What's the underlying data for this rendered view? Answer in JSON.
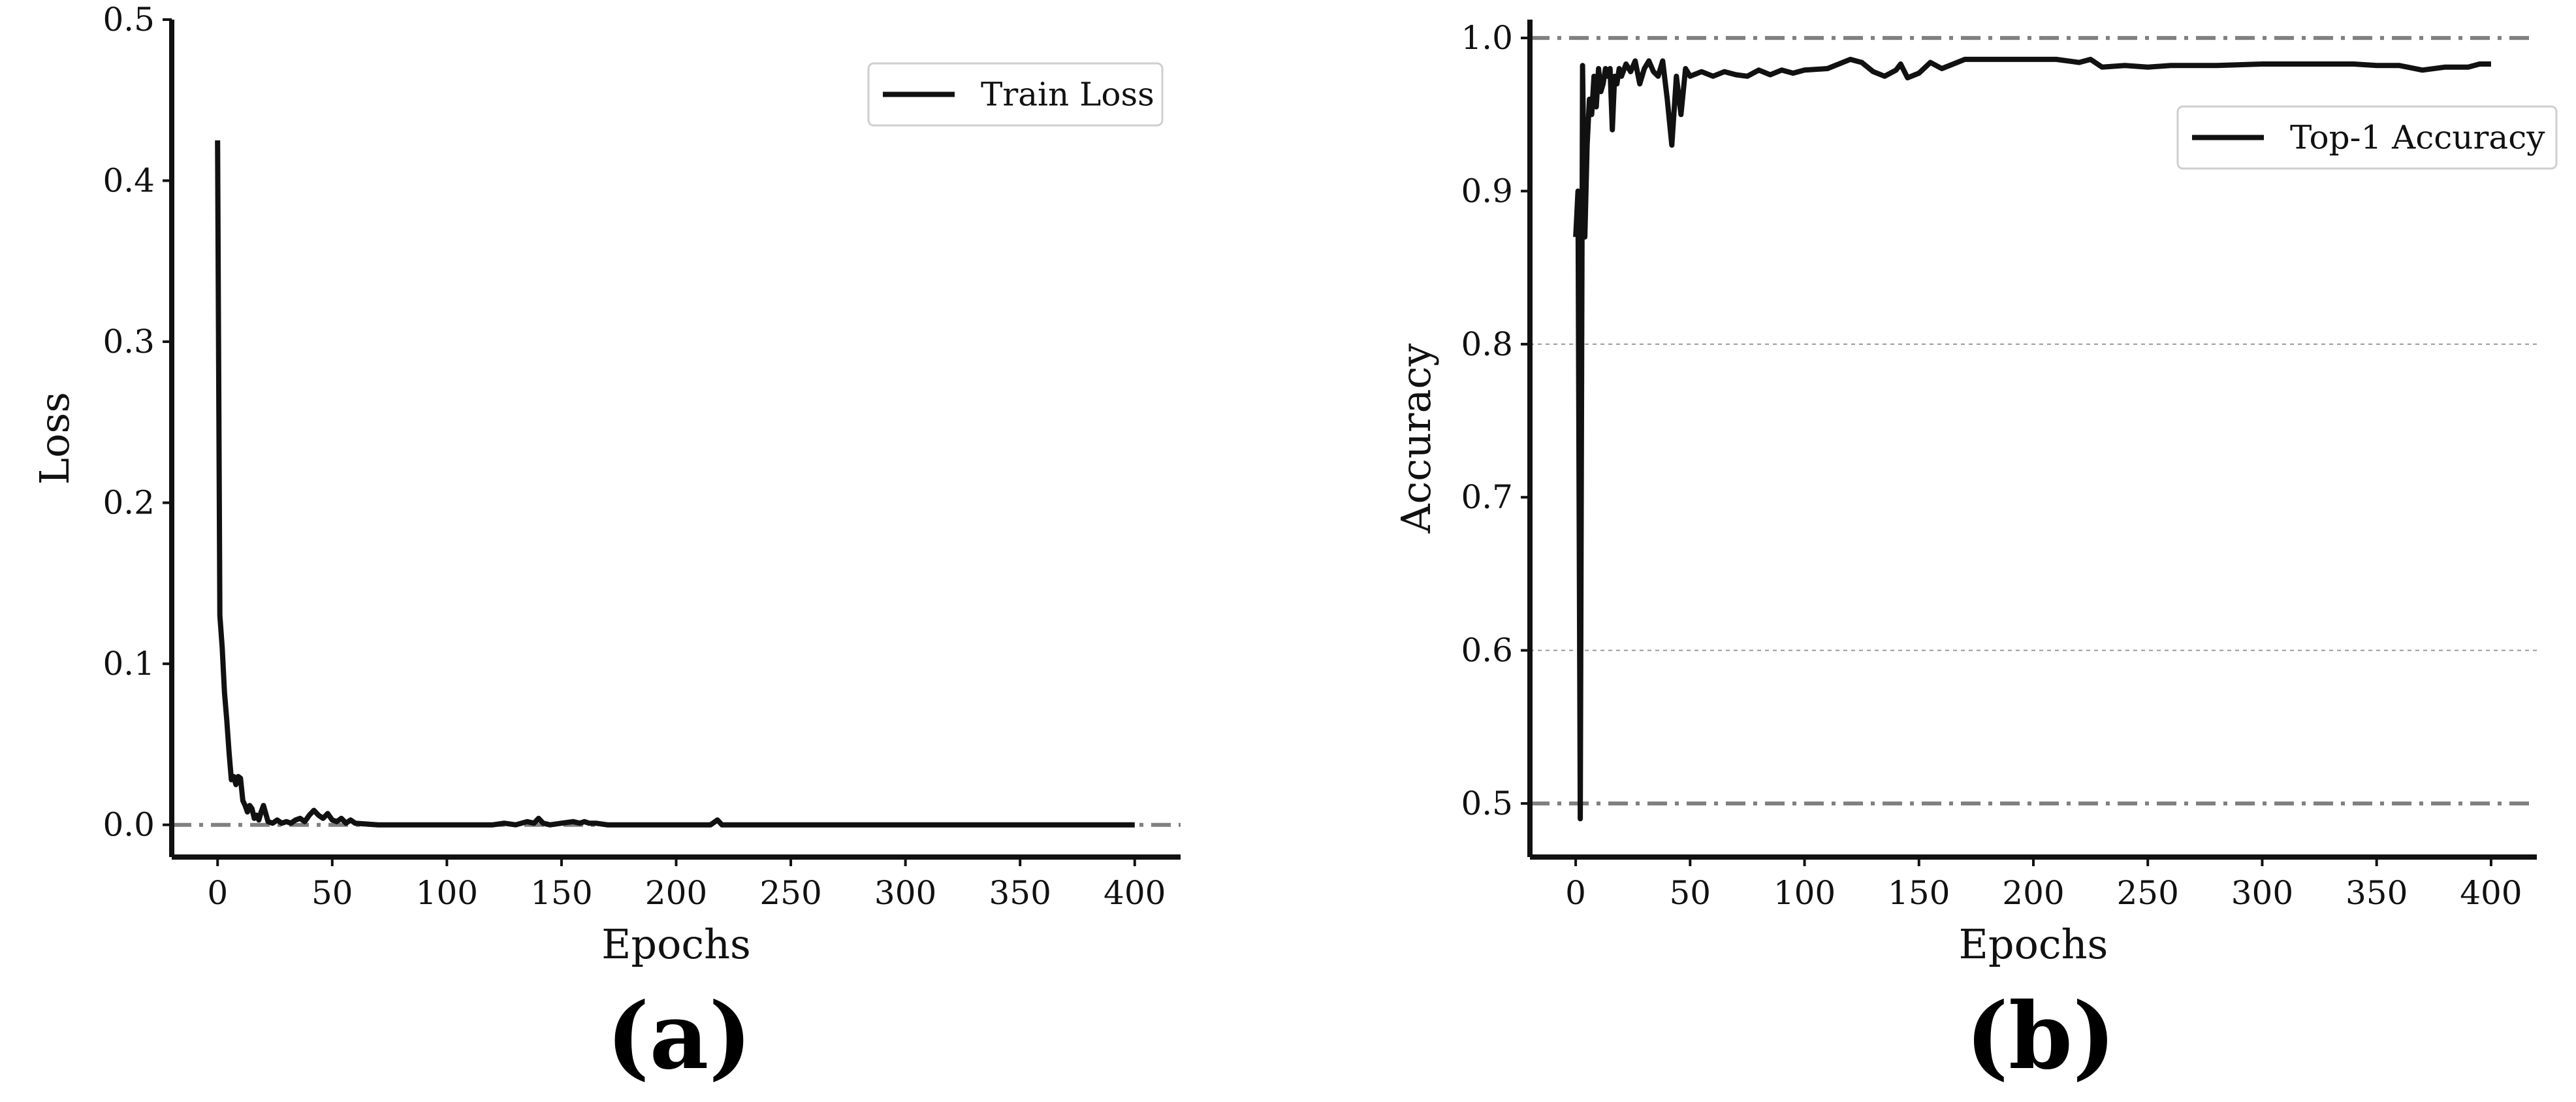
{
  "chart_data": [
    {
      "type": "line",
      "title": "",
      "panel_label": "(a)",
      "xlabel": "Epochs",
      "ylabel": "Loss",
      "xlim": [
        -20,
        420
      ],
      "ylim": [
        -0.02,
        0.5
      ],
      "xticks": [
        0,
        50,
        100,
        150,
        200,
        250,
        300,
        350,
        400
      ],
      "yticks": [
        0.0,
        0.1,
        0.2,
        0.3,
        0.4,
        0.5
      ],
      "ytick_labels": [
        "0.0",
        "0.1",
        "0.2",
        "0.3",
        "0.4",
        "0.5"
      ],
      "reference_lines": [
        0.0
      ],
      "grid": false,
      "legend": "top-right",
      "series": [
        {
          "name": "Train Loss",
          "color": "#111111",
          "x": [
            0,
            1,
            2,
            3,
            4,
            5,
            6,
            7,
            8,
            9,
            10,
            11,
            12,
            13,
            14,
            15,
            16,
            17,
            18,
            19,
            20,
            22,
            24,
            26,
            28,
            30,
            32,
            34,
            36,
            38,
            40,
            42,
            44,
            46,
            48,
            50,
            52,
            54,
            56,
            58,
            60,
            65,
            70,
            80,
            90,
            100,
            110,
            120,
            125,
            130,
            135,
            138,
            140,
            142,
            145,
            150,
            155,
            158,
            160,
            162,
            165,
            170,
            180,
            190,
            200,
            210,
            215,
            218,
            220,
            225,
            240,
            260,
            280,
            300,
            320,
            340,
            360,
            380,
            400
          ],
          "y": [
            0.425,
            0.13,
            0.11,
            0.082,
            0.065,
            0.045,
            0.028,
            0.03,
            0.025,
            0.03,
            0.029,
            0.015,
            0.012,
            0.008,
            0.012,
            0.01,
            0.004,
            0.006,
            0.003,
            0.008,
            0.012,
            0.002,
            0.001,
            0.003,
            0.001,
            0.002,
            0.001,
            0.003,
            0.004,
            0.002,
            0.006,
            0.009,
            0.006,
            0.004,
            0.007,
            0.003,
            0.002,
            0.004,
            0.001,
            0.003,
            0.001,
            0.0005,
            0.0,
            0.0,
            0.0,
            0.0,
            0.0,
            0.0,
            0.001,
            0.0,
            0.002,
            0.001,
            0.004,
            0.001,
            0.0,
            0.001,
            0.002,
            0.001,
            0.002,
            0.001,
            0.001,
            0.0,
            0.0,
            0.0,
            0.0,
            0.0,
            0.0,
            0.003,
            0.0,
            0.0,
            0.0,
            0.0,
            0.0,
            0.0,
            0.0,
            0.0,
            0.0,
            0.0,
            0.0
          ]
        }
      ]
    },
    {
      "type": "line",
      "title": "",
      "panel_label": "(b)",
      "xlabel": "Epochs",
      "ylabel": "Accuracy",
      "xlim": [
        -20,
        420
      ],
      "ylim": [
        0.465,
        1.012
      ],
      "xticks": [
        0,
        50,
        100,
        150,
        200,
        250,
        300,
        350,
        400
      ],
      "yticks": [
        0.5,
        0.6,
        0.7,
        0.8,
        0.9,
        1.0
      ],
      "ytick_labels": [
        "0.5",
        "0.6",
        "0.7",
        "0.8",
        "0.9",
        "1.0"
      ],
      "reference_lines": [
        0.5,
        1.0
      ],
      "gridlines": [
        0.6,
        0.8
      ],
      "grid": false,
      "legend": "top-right",
      "series": [
        {
          "name": "Top-1 Accuracy",
          "color": "#111111",
          "x": [
            0,
            1,
            2,
            3,
            4,
            5,
            6,
            7,
            8,
            9,
            10,
            11,
            12,
            13,
            14,
            15,
            16,
            17,
            18,
            19,
            20,
            22,
            24,
            26,
            28,
            30,
            32,
            34,
            36,
            38,
            40,
            42,
            44,
            46,
            48,
            50,
            55,
            60,
            65,
            70,
            75,
            80,
            85,
            90,
            95,
            100,
            110,
            120,
            125,
            130,
            135,
            140,
            142,
            145,
            150,
            155,
            160,
            165,
            170,
            180,
            190,
            200,
            210,
            220,
            225,
            230,
            240,
            250,
            260,
            280,
            300,
            320,
            340,
            350,
            360,
            370,
            380,
            390,
            395,
            400
          ],
          "y": [
            0.87,
            0.9,
            0.49,
            0.982,
            0.87,
            0.93,
            0.96,
            0.95,
            0.975,
            0.955,
            0.98,
            0.965,
            0.97,
            0.98,
            0.975,
            0.98,
            0.94,
            0.975,
            0.97,
            0.98,
            0.975,
            0.983,
            0.978,
            0.985,
            0.97,
            0.98,
            0.985,
            0.978,
            0.975,
            0.985,
            0.96,
            0.93,
            0.975,
            0.95,
            0.98,
            0.975,
            0.978,
            0.975,
            0.978,
            0.976,
            0.975,
            0.979,
            0.976,
            0.979,
            0.977,
            0.979,
            0.98,
            0.986,
            0.984,
            0.978,
            0.975,
            0.979,
            0.983,
            0.974,
            0.977,
            0.984,
            0.98,
            0.983,
            0.986,
            0.986,
            0.986,
            0.986,
            0.986,
            0.984,
            0.986,
            0.981,
            0.982,
            0.981,
            0.982,
            0.982,
            0.983,
            0.983,
            0.983,
            0.982,
            0.982,
            0.979,
            0.981,
            0.981,
            0.983,
            0.983
          ]
        }
      ]
    }
  ]
}
